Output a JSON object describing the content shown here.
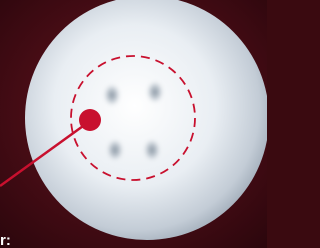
{
  "callout_label": "r:"
}
